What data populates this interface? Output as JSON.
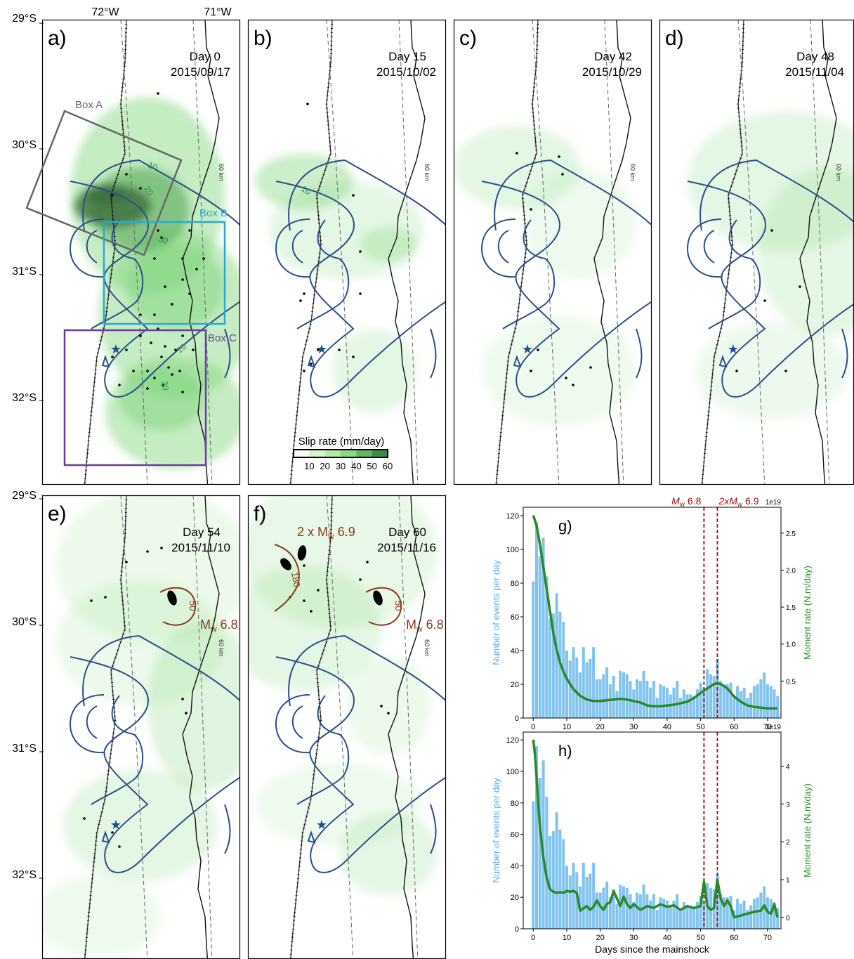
{
  "coords": {
    "lon_labels": [
      "72°W",
      "71°W"
    ],
    "lat_labels": [
      "29°S",
      "30°S",
      "31°S",
      "32°S"
    ]
  },
  "map_panels": [
    {
      "label": "a)",
      "day": "Day 0",
      "date": "2015/09/17"
    },
    {
      "label": "b)",
      "day": "Day 15",
      "date": "2015/10/02"
    },
    {
      "label": "c)",
      "day": "Day 42",
      "date": "2015/10/29"
    },
    {
      "label": "d)",
      "day": "Day 48",
      "date": "2015/11/04"
    },
    {
      "label": "e)",
      "day": "Day 54",
      "date": "2015/11/10"
    },
    {
      "label": "f)",
      "day": "Day 60",
      "date": "2015/11/16"
    }
  ],
  "depth_contour_label": "60 km",
  "boxes": [
    {
      "name": "Box A",
      "color": "#666666"
    },
    {
      "name": "Box B",
      "color": "#29a8d8"
    },
    {
      "name": "Box C",
      "color": "#6a3d9a"
    }
  ],
  "slip_contour_labels": [
    "10",
    "20",
    "30",
    "20",
    "30",
    "10"
  ],
  "events": {
    "mw68": "M",
    "mw68_sub": "w",
    "mw68_val": " 6.8",
    "mw69": "2 x M",
    "mw69_sub": "w",
    "mw69_val": " 6.9",
    "contour_50": "50",
    "contour_180": "180"
  },
  "colorbar": {
    "title": "Slip rate (mm/day)",
    "ticks": [
      "10",
      "20",
      "30",
      "40",
      "50",
      "60"
    ],
    "colors": [
      "#f4fbf0",
      "#d8f3cf",
      "#b2eaa8",
      "#8ad982",
      "#5fb863",
      "#3f8a46"
    ]
  },
  "colors": {
    "slip_green": "#7fd47a",
    "blue_contour": "#1f4e8c",
    "rate_blue": "#5aa9e6",
    "moment_green": "#2a8a2a",
    "event_red": "#a01010",
    "event_brown": "#8b3a1a"
  },
  "chart_data": [
    {
      "type": "bar",
      "panel": "g)",
      "xlabel": "",
      "ylabel": "Number of events per day",
      "y2label": "Moment rate (N.m/day)",
      "y2_multiplier": "1e19",
      "xlim": [
        -3,
        74
      ],
      "xticks": [
        0,
        10,
        20,
        30,
        40,
        50,
        60,
        70
      ],
      "ylim": [
        0,
        125
      ],
      "yticks": [
        0,
        20,
        40,
        60,
        80,
        100,
        120
      ],
      "y2lim": [
        0,
        2.85
      ],
      "y2ticks": [
        0.5,
        1.0,
        1.5,
        2.0,
        2.5
      ],
      "y2tick_labels": [
        "0.5",
        "1.0",
        "1.5",
        "2.0",
        "2.5"
      ],
      "vlines": [
        {
          "x": 51,
          "label_m": "M",
          "label_sub": "w",
          "label_val": " 6.8"
        },
        {
          "x": 55,
          "label_m": "2xM",
          "label_sub": "w",
          "label_val": " 6.9"
        }
      ],
      "series": [
        {
          "name": "",
          "kind": "bar",
          "x": [
            0,
            1,
            2,
            3,
            4,
            5,
            6,
            7,
            8,
            9,
            10,
            11,
            12,
            13,
            14,
            15,
            16,
            17,
            18,
            19,
            20,
            21,
            22,
            23,
            24,
            25,
            26,
            27,
            28,
            29,
            30,
            31,
            32,
            33,
            34,
            35,
            36,
            37,
            38,
            39,
            40,
            41,
            42,
            43,
            44,
            45,
            46,
            47,
            48,
            49,
            50,
            51,
            52,
            53,
            54,
            55,
            56,
            57,
            58,
            59,
            60,
            61,
            62,
            63,
            64,
            65,
            66,
            67,
            68,
            69,
            70,
            71,
            72,
            73
          ],
          "values": [
            81,
            116,
            96,
            107,
            84,
            59,
            62,
            74,
            63,
            57,
            40,
            34,
            42,
            36,
            27,
            42,
            33,
            35,
            42,
            23,
            23,
            26,
            30,
            20,
            25,
            16,
            28,
            27,
            26,
            22,
            17,
            23,
            22,
            28,
            22,
            18,
            22,
            12,
            20,
            19,
            18,
            14,
            18,
            22,
            12,
            17,
            14,
            14,
            13,
            17,
            21,
            18,
            29,
            26,
            25,
            35,
            22,
            20,
            20,
            21,
            12,
            19,
            16,
            18,
            12,
            15,
            19,
            20,
            23,
            27,
            20,
            19,
            17,
            13
          ]
        },
        {
          "name": "",
          "kind": "line",
          "x": [
            0,
            1,
            2,
            3,
            4,
            5,
            6,
            7,
            8,
            9,
            10,
            12,
            14,
            16,
            18,
            20,
            22,
            24,
            26,
            28,
            30,
            32,
            34,
            36,
            38,
            40,
            42,
            44,
            46,
            48,
            50,
            52,
            54,
            55,
            56,
            58,
            60,
            62,
            64,
            66,
            68,
            70,
            72,
            73
          ],
          "values": [
            2.74,
            2.6,
            2.35,
            2.05,
            1.75,
            1.45,
            1.15,
            0.92,
            0.75,
            0.63,
            0.53,
            0.39,
            0.3,
            0.25,
            0.23,
            0.23,
            0.24,
            0.25,
            0.26,
            0.25,
            0.23,
            0.21,
            0.17,
            0.16,
            0.16,
            0.17,
            0.18,
            0.2,
            0.22,
            0.27,
            0.34,
            0.4,
            0.46,
            0.47,
            0.46,
            0.4,
            0.29,
            0.22,
            0.17,
            0.15,
            0.14,
            0.13,
            0.13,
            0.13
          ]
        }
      ]
    },
    {
      "type": "bar",
      "panel": "h)",
      "xlabel": "Days since the mainshock",
      "ylabel": "Number of events per day",
      "y2label": "Moment rate (N.m/day)",
      "y2_multiplier": "1e19",
      "xlim": [
        -3,
        74
      ],
      "xticks": [
        0,
        10,
        20,
        30,
        40,
        50,
        60,
        70
      ],
      "ylim": [
        0,
        125
      ],
      "yticks": [
        0,
        20,
        40,
        60,
        80,
        100,
        120
      ],
      "y2lim": [
        -0.3,
        4.9
      ],
      "y2ticks": [
        0,
        1,
        2,
        3,
        4
      ],
      "y2tick_labels": [
        "0",
        "1",
        "2",
        "3",
        "4"
      ],
      "vlines": [
        {
          "x": 51
        },
        {
          "x": 55
        }
      ],
      "series": [
        {
          "name": "",
          "kind": "bar",
          "x": [
            0,
            1,
            2,
            3,
            4,
            5,
            6,
            7,
            8,
            9,
            10,
            11,
            12,
            13,
            14,
            15,
            16,
            17,
            18,
            19,
            20,
            21,
            22,
            23,
            24,
            25,
            26,
            27,
            28,
            29,
            30,
            31,
            32,
            33,
            34,
            35,
            36,
            37,
            38,
            39,
            40,
            41,
            42,
            43,
            44,
            45,
            46,
            47,
            48,
            49,
            50,
            51,
            52,
            53,
            54,
            55,
            56,
            57,
            58,
            59,
            60,
            61,
            62,
            63,
            64,
            65,
            66,
            67,
            68,
            69,
            70,
            71,
            72,
            73
          ],
          "values": [
            81,
            116,
            96,
            107,
            84,
            59,
            62,
            74,
            63,
            57,
            40,
            34,
            42,
            36,
            27,
            42,
            33,
            35,
            42,
            23,
            23,
            26,
            30,
            20,
            25,
            16,
            28,
            27,
            26,
            22,
            17,
            23,
            22,
            28,
            22,
            18,
            22,
            12,
            20,
            19,
            18,
            14,
            18,
            22,
            12,
            17,
            14,
            14,
            13,
            17,
            21,
            18,
            29,
            26,
            25,
            35,
            22,
            20,
            20,
            21,
            12,
            19,
            16,
            18,
            12,
            15,
            19,
            20,
            23,
            27,
            20,
            19,
            17,
            13
          ]
        },
        {
          "name": "",
          "kind": "line",
          "x": [
            0,
            0.5,
            1,
            1.5,
            2,
            3,
            4,
            5,
            6,
            7,
            8,
            9,
            10,
            11,
            12,
            13,
            14,
            15,
            16,
            17,
            18,
            19,
            20,
            21,
            22,
            23,
            24,
            25,
            26,
            27,
            28,
            29,
            30,
            32,
            34,
            36,
            38,
            40,
            42,
            44,
            46,
            48,
            50,
            51,
            52,
            53,
            54,
            55,
            56,
            57,
            58,
            59,
            60,
            62,
            64,
            66,
            68,
            69,
            70,
            71,
            72,
            73
          ],
          "values": [
            4.7,
            4.3,
            3.7,
            3.0,
            2.4,
            1.6,
            1.05,
            0.75,
            0.68,
            0.65,
            0.67,
            0.65,
            0.7,
            0.68,
            0.7,
            0.65,
            0.18,
            0.24,
            0.3,
            0.2,
            0.28,
            0.45,
            0.3,
            0.2,
            0.36,
            0.4,
            0.7,
            0.5,
            0.3,
            0.55,
            0.35,
            0.25,
            0.35,
            0.2,
            0.3,
            0.25,
            0.35,
            0.28,
            0.32,
            0.2,
            0.3,
            0.25,
            0.3,
            0.95,
            0.3,
            0.2,
            0.25,
            1.0,
            0.5,
            0.3,
            0.45,
            0.3,
            0.0,
            0.05,
            0.1,
            0.15,
            0.18,
            0.32,
            0.15,
            0.1,
            0.35,
            0.0
          ]
        }
      ]
    }
  ]
}
